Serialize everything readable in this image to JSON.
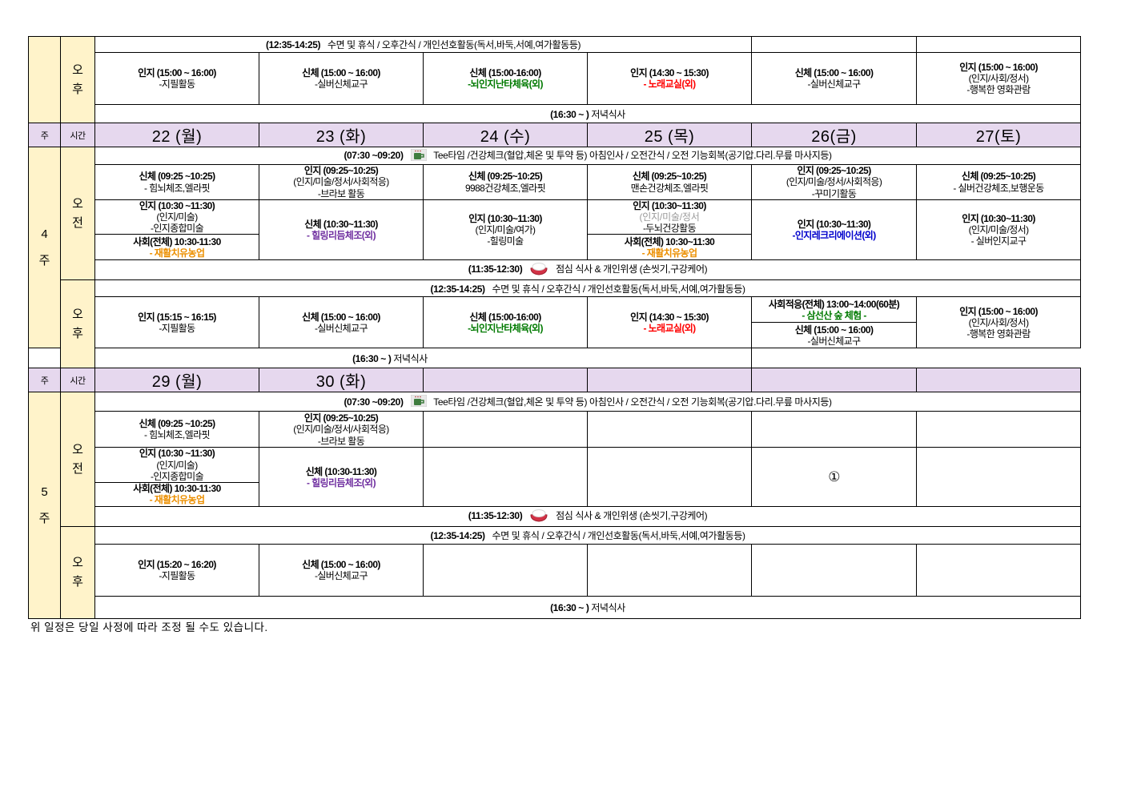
{
  "colors": {
    "header_purple": "#E6D8EE",
    "left_yellow": "#FFF3CA",
    "green": "#007A00",
    "red": "#FF0000",
    "purple": "#7030A0",
    "blue": "#0000CC",
    "orange": "#EC8F00",
    "gray": "#9A9A9A"
  },
  "left": {
    "week_label": "주",
    "time_label": "시간",
    "morning": "오전",
    "afternoon": "오후",
    "week4_num": "4",
    "week5_num": "5",
    "week_suffix": "주"
  },
  "info": {
    "rest_time": "(12:35-14:25)",
    "rest_text": "수면 및 휴식 / 오후간식 / 개인선호활동(독서,바둑,서예,여가활동등)",
    "morning_time": "(07:30 ~09:20)",
    "morning_text": "Tee타임 /건강체크(혈압,체온 및 투약 등) 아침인사 / 오전간식 / 오전 기능회복(공기압.다리.무릎 마사지등)",
    "lunch_time": "(11:35-12:30)",
    "lunch_text": "점심 식사 & 개인위생 (손씻기,구강케어)",
    "dinner_time": "(16:30 ~ )",
    "dinner_text": "저녁식사",
    "tea_icon": "tea-cup-icon",
    "lunch_icon": "rice-bowl-icon"
  },
  "week4_header": {
    "days": [
      "22 (월)",
      "23 (화)",
      "24 (수)",
      "25 (목)",
      "26(금)",
      "27(토)"
    ]
  },
  "week5_header": {
    "days": [
      "29 (월)",
      "30 (화)",
      "",
      "",
      "",
      ""
    ]
  },
  "top_afternoon": {
    "mon": [
      {
        "t": "인지 (15:00 ~ 16:00)",
        "s": "b"
      },
      {
        "t": "-지필활동",
        "s": "n"
      }
    ],
    "tue": [
      {
        "t": "신체 (15:00 ~ 16:00)",
        "s": "b"
      },
      {
        "t": "-실버신체교구",
        "s": "n"
      }
    ],
    "wed": [
      {
        "t": "신체 (15:00-16:00)",
        "s": "b"
      },
      {
        "t": "-뇌인지난타체육(외)",
        "s": "green"
      }
    ],
    "thu": [
      {
        "t": "인지 (14:30 ~ 15:30)",
        "s": "b"
      },
      {
        "t": "- 노래교실(외)",
        "s": "red"
      }
    ],
    "fri": [
      {
        "t": "신체 (15:00 ~ 16:00)",
        "s": "b"
      },
      {
        "t": "-실버신체교구",
        "s": "n"
      }
    ],
    "sat": [
      {
        "t": "인지 (15:00 ~ 16:00)",
        "s": "b"
      },
      {
        "t": "(인지/사회/정서)",
        "s": "n"
      },
      {
        "t": "-행복한 영화관람",
        "s": "n"
      }
    ]
  },
  "week4": {
    "act1": {
      "mon": [
        {
          "t": "신체 (09:25 ~10:25)",
          "s": "b"
        },
        {
          "t": "- 힘뇌체조,엘라핏",
          "s": "n"
        }
      ],
      "tue": [
        {
          "t": "인지 (09:25~10:25)",
          "s": "b"
        },
        {
          "t": "(인지/미술/정서/사회적응)",
          "s": "n"
        },
        {
          "t": "-브라보 활동",
          "s": "n"
        }
      ],
      "wed": [
        {
          "t": "신체 (09:25~10:25)",
          "s": "b"
        },
        {
          "t": "9988건강체조,엘라핏",
          "s": "n"
        }
      ],
      "thu": [
        {
          "t": "신체 (09:25~10:25)",
          "s": "b"
        },
        {
          "t": "맨손건강체조,엘라핏",
          "s": "n"
        }
      ],
      "fri": [
        {
          "t": "인지 (09:25~10:25)",
          "s": "b"
        },
        {
          "t": "(인지/미술/정서/사회적응)",
          "s": "n"
        },
        {
          "t": "-꾸미기활동",
          "s": "n"
        }
      ],
      "sat": [
        {
          "t": "신체 (09:25~10:25)",
          "s": "b"
        },
        {
          "t": "- 실버건강체조,보행운동",
          "s": "n"
        }
      ]
    },
    "act2": {
      "mon_a": [
        {
          "t": "인지 (10:30 ~11:30)",
          "s": "b"
        },
        {
          "t": "(인지/미술)",
          "s": "n"
        },
        {
          "t": "-인지종합미술",
          "s": "n"
        }
      ],
      "mon_b": [
        {
          "t": "사회(전체) 10:30-11:30",
          "s": "b"
        },
        {
          "t": "- 재활치유농업",
          "s": "orange"
        }
      ],
      "tue": [
        {
          "t": "신체 (10:30~11:30)",
          "s": "b"
        },
        {
          "t": "- 힐링리듬체조(외)",
          "s": "purple"
        }
      ],
      "wed": [
        {
          "t": "인지 (10:30~11:30)",
          "s": "b"
        },
        {
          "t": "(인지/미술/여가)",
          "s": "n"
        },
        {
          "t": "-힐링미술",
          "s": "n"
        }
      ],
      "thu_a": [
        {
          "t": "인지 (10:30~11:30)",
          "s": "b"
        },
        {
          "t": "(인지/미술/정서",
          "s": "g"
        },
        {
          "t": "-두뇌건강활동",
          "s": "n"
        }
      ],
      "thu_b": [
        {
          "t": "사회(전체) 10:30~11:30",
          "s": "b"
        },
        {
          "t": "- 재활치유농업",
          "s": "orange"
        }
      ],
      "fri": [
        {
          "t": "인지 (10:30~11:30)",
          "s": "b"
        },
        {
          "t": "-인지레크리에이션(외)",
          "s": "blue"
        }
      ],
      "sat": [
        {
          "t": "인지 (10:30~11:30)",
          "s": "b"
        },
        {
          "t": "(인지/미술/정서)",
          "s": "n"
        },
        {
          "t": "- 실버인지교구",
          "s": "n"
        }
      ]
    },
    "afternoon": {
      "mon": [
        {
          "t": "인지 (15:15 ~ 16:15)",
          "s": "b"
        },
        {
          "t": "-지필활동",
          "s": "n"
        }
      ],
      "tue": [
        {
          "t": "신체 (15:00 ~ 16:00)",
          "s": "b"
        },
        {
          "t": "-실버신체교구",
          "s": "n"
        }
      ],
      "wed": [
        {
          "t": "신체 (15:00-16:00)",
          "s": "b"
        },
        {
          "t": "-뇌인지난타체육(외)",
          "s": "green"
        }
      ],
      "thu": [
        {
          "t": "인지 (14:30 ~ 15:30)",
          "s": "b"
        },
        {
          "t": "- 노래교실(외)",
          "s": "red"
        }
      ],
      "fri_a": [
        {
          "t": "사회적응(전체) 13:00~14:00(60분)",
          "s": "b"
        },
        {
          "t": "- 삼선산 숲 체험 -",
          "s": "green"
        }
      ],
      "fri_b": [
        {
          "t": "신체 (15:00 ~ 16:00)",
          "s": "b"
        },
        {
          "t": "-실버신체교구",
          "s": "n"
        }
      ],
      "sat": [
        {
          "t": "인지 (15:00 ~ 16:00)",
          "s": "b"
        },
        {
          "t": "(인지/사회/정서)",
          "s": "n"
        },
        {
          "t": "-행복한 영화관람",
          "s": "n"
        }
      ]
    }
  },
  "week5": {
    "act1": {
      "mon": [
        {
          "t": "신체 (09:25 ~10:25)",
          "s": "b"
        },
        {
          "t": "- 힘뇌체조,엘라핏",
          "s": "n"
        }
      ],
      "tue": [
        {
          "t": "인지 (09:25~10:25)",
          "s": "b"
        },
        {
          "t": "(인지/미술/정서/사회적응)",
          "s": "n"
        },
        {
          "t": "-브라보 활동",
          "s": "n"
        }
      ]
    },
    "act2": {
      "mon_a": [
        {
          "t": "인지 (10:30 ~11:30)",
          "s": "b"
        },
        {
          "t": "(인지/미술)",
          "s": "n"
        },
        {
          "t": "-인지종합미술",
          "s": "n"
        }
      ],
      "mon_b": [
        {
          "t": "사회(전체) 10:30-11:30",
          "s": "b"
        },
        {
          "t": "- 재활치유농업",
          "s": "orange"
        }
      ],
      "tue": [
        {
          "t": "신체 (10:30-11:30)",
          "s": "b"
        },
        {
          "t": "- 힐링리듬체조(외)",
          "s": "purple"
        }
      ],
      "fri": [
        {
          "t": "①",
          "s": "circ"
        }
      ]
    },
    "afternoon": {
      "mon": [
        {
          "t": "인지 (15:20 ~ 16:20)",
          "s": "b"
        },
        {
          "t": "-지필활동",
          "s": "n"
        }
      ],
      "tue": [
        {
          "t": "신체 (15:00 ~ 16:00)",
          "s": "b"
        },
        {
          "t": "-실버신체교구",
          "s": "n"
        }
      ]
    }
  },
  "footer": "위 일정은 당일 사정에 따라 조정 될 수도 있습니다."
}
